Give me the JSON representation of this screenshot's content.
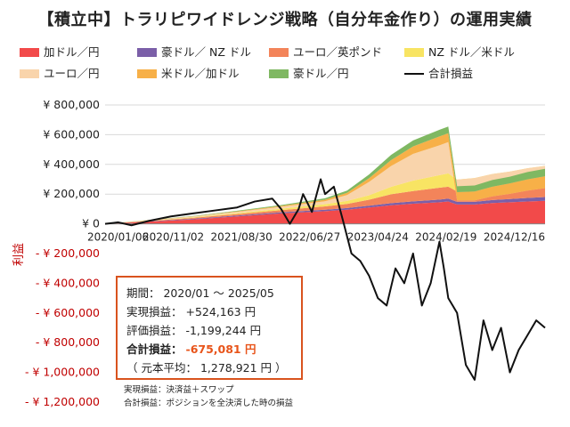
{
  "title": "【積立中】トラリピワイドレンジ戦略（自分年金作り）の運用実績",
  "legend": [
    {
      "label": "加ドル／円",
      "color": "#f24a4a"
    },
    {
      "label": "豪ドル／ NZ ドル",
      "color": "#7b5fa8"
    },
    {
      "label": "ユーロ／英ポンド",
      "color": "#f3845a"
    },
    {
      "label": "NZ ドル／米ドル",
      "color": "#f8e463"
    },
    {
      "label": "ユーロ／円",
      "color": "#f9d4ab"
    },
    {
      "label": "米ドル／加ドル",
      "color": "#f7b048"
    },
    {
      "label": "豪ドル／円",
      "color": "#7fb862"
    },
    {
      "label": "合計損益",
      "color": "#111111"
    }
  ],
  "chart_data": {
    "type": "area",
    "ylabel": "利益",
    "ylim": [
      -1200000,
      800000
    ],
    "y_ticks": [
      {
        "value": 800000,
        "label": "¥ 800,000"
      },
      {
        "value": 600000,
        "label": "¥ 600,000"
      },
      {
        "value": 400000,
        "label": "¥ 400,000"
      },
      {
        "value": 200000,
        "label": "¥ 200,000"
      },
      {
        "value": 0,
        "label": "¥ 0"
      },
      {
        "value": -200000,
        "label": "- ¥ 200,000"
      },
      {
        "value": -400000,
        "label": "- ¥ 400,000"
      },
      {
        "value": -600000,
        "label": "- ¥ 600,000"
      },
      {
        "value": -800000,
        "label": "- ¥ 800,000"
      },
      {
        "value": -1000000,
        "label": "- ¥ 1,000,000"
      },
      {
        "value": -1200000,
        "label": "- ¥ 1,200,000"
      }
    ],
    "x_ticks": [
      "2020/01/06",
      "2020/11/02",
      "2021/08/30",
      "2022/06/27",
      "2023/04/24",
      "2024/02/19",
      "2024/12/16"
    ],
    "stack_order": [
      "加ドル／円",
      "豪ドル／ NZ ドル",
      "ユーロ／英ポンド",
      "NZ ドル／米ドル",
      "ユーロ／円",
      "米ドル／加ドル",
      "豪ドル／円"
    ],
    "stack_x": [
      0,
      0.1,
      0.2,
      0.3,
      0.4,
      0.5,
      0.55,
      0.6,
      0.65,
      0.7,
      0.76,
      0.78,
      0.8,
      0.84,
      0.88,
      0.92,
      0.96,
      1.0
    ],
    "series": [
      {
        "name": "加ドル／円",
        "values": [
          0,
          15000,
          30000,
          50000,
          70000,
          85000,
          95000,
          110000,
          125000,
          135000,
          145000,
          150000,
          130000,
          130000,
          140000,
          145000,
          150000,
          155000
        ]
      },
      {
        "name": "豪ドル／ NZ ドル",
        "values": [
          0,
          2000,
          4000,
          6000,
          8000,
          10000,
          11000,
          12000,
          14000,
          16000,
          18000,
          20000,
          18000,
          18000,
          20000,
          22000,
          24000,
          25000
        ]
      },
      {
        "name": "ユーロ／英ポンド",
        "values": [
          0,
          3000,
          6000,
          10000,
          14000,
          22000,
          28000,
          40000,
          60000,
          70000,
          80000,
          80000,
          70000,
          75000,
          80000,
          85000,
          90000,
          95000
        ]
      },
      {
        "name": "NZ ドル／米ドル",
        "values": [
          0,
          2000,
          4000,
          6000,
          10000,
          15000,
          20000,
          30000,
          50000,
          70000,
          85000,
          90000,
          80000,
          85000,
          95000,
          100000,
          110000,
          115000
        ]
      },
      {
        "name": "ユーロ／円",
        "values": [
          0,
          2000,
          5000,
          8000,
          12000,
          20000,
          40000,
          90000,
          140000,
          180000,
          200000,
          210000,
          -140000,
          -150000,
          -150000,
          -150000,
          -150000,
          -150000
        ]
      },
      {
        "name": "米ドル／加ドル",
        "values": [
          0,
          1000,
          2000,
          4000,
          6000,
          10000,
          15000,
          25000,
          40000,
          50000,
          60000,
          60000,
          55000,
          60000,
          65000,
          70000,
          75000,
          80000
        ]
      },
      {
        "name": "豪ドル／円",
        "values": [
          0,
          1000,
          2000,
          4000,
          6000,
          10000,
          15000,
          25000,
          35000,
          40000,
          45000,
          45000,
          40000,
          40000,
          45000,
          45000,
          50000,
          50000
        ]
      }
    ],
    "total_x": [
      0,
      0.03,
      0.06,
      0.1,
      0.15,
      0.2,
      0.25,
      0.3,
      0.34,
      0.38,
      0.4,
      0.42,
      0.44,
      0.45,
      0.47,
      0.49,
      0.5,
      0.52,
      0.54,
      0.56,
      0.58,
      0.6,
      0.62,
      0.64,
      0.66,
      0.68,
      0.7,
      0.72,
      0.74,
      0.76,
      0.77,
      0.78,
      0.8,
      0.82,
      0.84,
      0.86,
      0.88,
      0.9,
      0.92,
      0.94,
      0.96,
      0.98,
      1.0
    ],
    "total_values": [
      0,
      10000,
      -10000,
      20000,
      50000,
      70000,
      90000,
      110000,
      150000,
      170000,
      100000,
      0,
      100000,
      200000,
      80000,
      300000,
      200000,
      250000,
      30000,
      -200000,
      -250000,
      -350000,
      -500000,
      -550000,
      -300000,
      -400000,
      -200000,
      -550000,
      -400000,
      -120000,
      -300000,
      -500000,
      -600000,
      -950000,
      -1050000,
      -650000,
      -850000,
      -700000,
      -1000000,
      -850000,
      -750000,
      -650000,
      -700000
    ]
  },
  "summary": {
    "period": "期間： 2020/01 〜 2025/05",
    "realized": "実現損益： +524,163 円",
    "unrealized": "評価損益： -1,199,244 円",
    "total_label": "合計損益：",
    "total_value": "-675,081 円",
    "principal": "（ 元本平均： 1,278,921 円 ）"
  },
  "notes": [
    "実現損益：決済益＋スワップ",
    "合計損益：ポジションを全決済した時の損益"
  ]
}
